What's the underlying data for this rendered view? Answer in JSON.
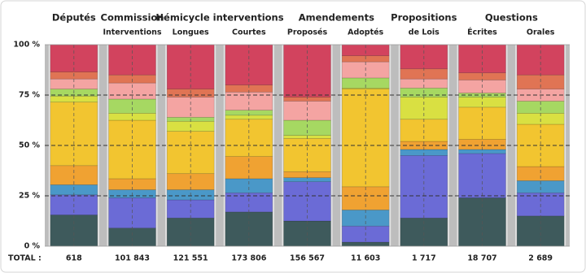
{
  "chart_data": {
    "type": "stacked_bar_percent",
    "groups": [
      {
        "label": "Députés",
        "columns": 1
      },
      {
        "label": "Commission",
        "columns": 1
      },
      {
        "label": "Hémicycle interventions",
        "columns": 2
      },
      {
        "label": "Amendements",
        "columns": 2
      },
      {
        "label": "Propositions",
        "columns": 1
      },
      {
        "label": "Questions",
        "columns": 2
      }
    ],
    "categories": [
      null,
      "Interventions",
      "Longues",
      "Courtes",
      "Proposés",
      "Adoptés",
      "de Lois",
      "Écrites",
      "Orales"
    ],
    "series": [
      {
        "color": "#3e5a5c",
        "values": [
          15.5,
          9,
          14,
          17,
          12.5,
          2,
          14,
          24,
          15
        ]
      },
      {
        "color": "#6b6bd6",
        "values": [
          10,
          15,
          9,
          9.5,
          19.5,
          8,
          31,
          22,
          11.5
        ]
      },
      {
        "color": "#4a98c8",
        "values": [
          5,
          4,
          5,
          7,
          2,
          8,
          3,
          2,
          6
        ]
      },
      {
        "color": "#f0a232",
        "values": [
          9.5,
          5.5,
          8,
          11,
          3,
          11.5,
          4,
          5,
          7
        ]
      },
      {
        "color": "#f2c530",
        "values": [
          31.5,
          29,
          21,
          18.5,
          16.5,
          48.5,
          11,
          16,
          21
        ]
      },
      {
        "color": "#d9e042",
        "values": [
          3,
          3.5,
          5,
          2,
          1.5,
          0.5,
          11,
          5,
          5.5
        ]
      },
      {
        "color": "#a6d862",
        "values": [
          3.5,
          7,
          2,
          2.5,
          7.5,
          5,
          4.5,
          2,
          6
        ]
      },
      {
        "color": "#f4a4a2",
        "values": [
          5,
          8,
          10,
          9,
          9.5,
          8,
          4.5,
          6.5,
          6
        ]
      },
      {
        "color": "#e07454",
        "values": [
          3.5,
          4,
          4,
          3.5,
          2,
          3,
          5,
          3.5,
          7
        ]
      },
      {
        "color": "#d2435e",
        "values": [
          13.5,
          15,
          22,
          20,
          26,
          5.5,
          12,
          14,
          15
        ]
      }
    ],
    "ylim": [
      0,
      100
    ],
    "yticks": [
      {
        "value": 0,
        "label": "0 %"
      },
      {
        "value": 25,
        "label": "25 %"
      },
      {
        "value": 50,
        "label": "50 %"
      },
      {
        "value": 75,
        "label": "75 %"
      },
      {
        "value": 100,
        "label": "100 %"
      }
    ],
    "grid": true,
    "totals_label": "TOTAL :",
    "totals": [
      "618",
      "101 843",
      "121 551",
      "173 806",
      "156 567",
      "11 603",
      "1 717",
      "18 707",
      "2 689"
    ]
  }
}
